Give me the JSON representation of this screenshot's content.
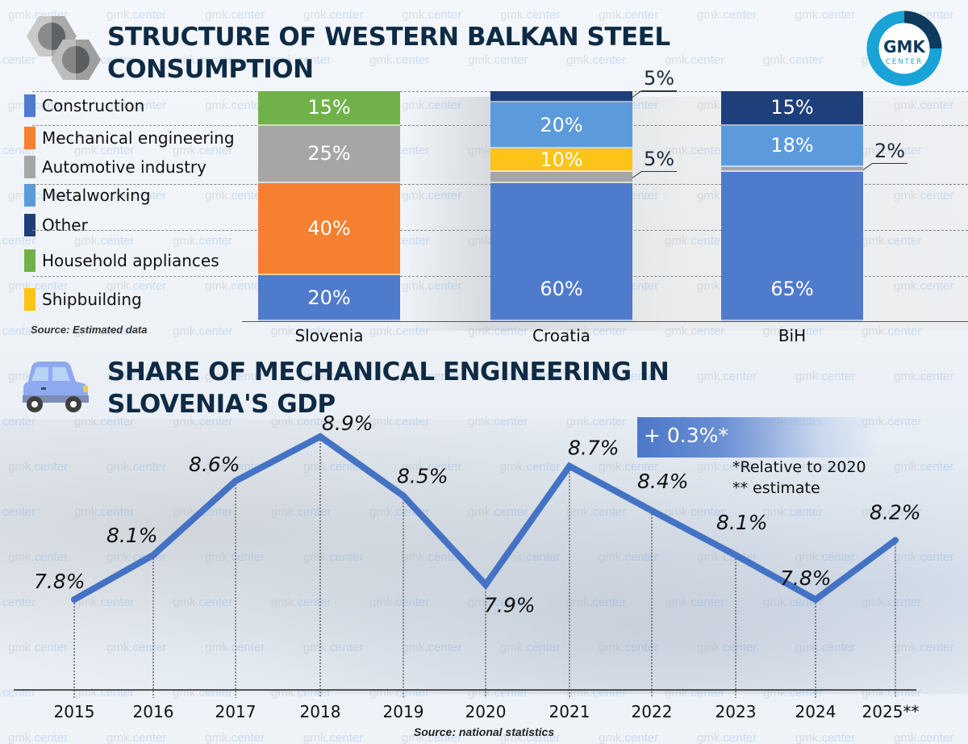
{
  "colors": {
    "title": "#0e2a44",
    "line": "#4472c4",
    "logo_ring": "#19a3d6",
    "logo_dark": "#0e3a5c"
  },
  "logo": {
    "line1": "GMK",
    "line2": "CENTER"
  },
  "watermark_text": {
    "a": "gmk.",
    "b": "center"
  },
  "chart_data": [
    {
      "type": "bar",
      "stacked": true,
      "title": "STRUCTURE OF WESTERN BALKAN STEEL CONSUMPTION",
      "title_lines": [
        "STRUCTURE OF WESTERN BALKAN STEEL",
        "CONSUMPTION"
      ],
      "categories": [
        "Slovenia",
        "Croatia",
        "BiH"
      ],
      "unit": "%",
      "ylim": [
        0,
        100
      ],
      "legend_position": "left",
      "series": [
        {
          "name": "Construction",
          "color": "#4f7bcd",
          "values": [
            20,
            60,
            65
          ]
        },
        {
          "name": "Mechanical engineering",
          "color": "#f5802f",
          "values": [
            40,
            0,
            0
          ]
        },
        {
          "name": "Automotive industry",
          "color": "#a6a6a6",
          "values": [
            25,
            5,
            2
          ]
        },
        {
          "name": "Metalworking",
          "color": "#5b9bdb",
          "values": [
            0,
            20,
            18
          ]
        },
        {
          "name": "Other",
          "color": "#1f3f7a",
          "values": [
            0,
            5,
            15
          ]
        },
        {
          "name": "Household appliances",
          "color": "#71b14a",
          "values": [
            15,
            0,
            0
          ]
        },
        {
          "name": "Shipbuilding",
          "color": "#fcc419",
          "values": [
            0,
            10,
            0
          ]
        }
      ],
      "stack_order": [
        [
          "Construction",
          "Mechanical engineering",
          "Automotive industry",
          "Household appliances"
        ],
        [
          "Construction",
          "Automotive industry",
          "Shipbuilding",
          "Metalworking",
          "Other"
        ],
        [
          "Construction",
          "Automotive industry",
          "Metalworking",
          "Other"
        ]
      ],
      "source": "Source: Estimated data"
    },
    {
      "type": "line",
      "title": "SHARE OF MECHANICAL ENGINEERING IN SLOVENIA'S GDP",
      "title_lines": [
        "SHARE OF MECHANICAL ENGINEERING IN",
        "SLOVENIA'S GDP"
      ],
      "x": [
        "2015",
        "2016",
        "2017",
        "2018",
        "2019",
        "2020",
        "2021",
        "2022",
        "2023",
        "2024",
        "2025**"
      ],
      "series": [
        {
          "name": "Share of mechanical engineering in GDP",
          "unit": "%",
          "values": [
            7.8,
            8.1,
            8.6,
            8.9,
            8.5,
            7.9,
            8.7,
            8.4,
            8.1,
            7.8,
            8.2
          ]
        }
      ],
      "data_labels": [
        "7.8%",
        "8.1%",
        "8.6%",
        "8.9%",
        "8.5%",
        "7.9%",
        "8.7%",
        "8.4%",
        "8.1%",
        "7.8%",
        "8.2%"
      ],
      "ylim": [
        7.4,
        9.0
      ],
      "grid": false,
      "annotation": "+ 0.3%*",
      "notes": [
        "*Relative to 2020",
        "** estimate"
      ],
      "source": "Source: national statistics"
    }
  ]
}
